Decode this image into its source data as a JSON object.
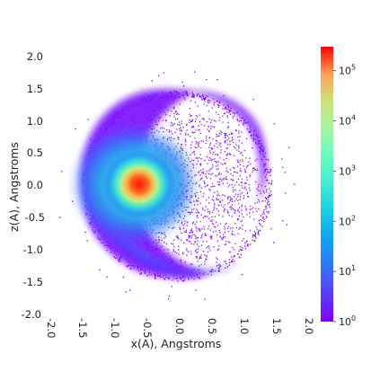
{
  "chart_data": {
    "type": "heatmap",
    "title": "",
    "xlabel": "x(A), Angstroms",
    "ylabel": "z(A), Angstroms",
    "xlim": [
      -2.0,
      2.0
    ],
    "ylim": [
      -2.0,
      2.0
    ],
    "x_ticks": [
      "-2.0",
      "-1.5",
      "-1.0",
      "-0.5",
      "0.0",
      "0.5",
      "1.0",
      "1.5",
      "2.0"
    ],
    "y_ticks": [
      "2.0",
      "1.5",
      "1.0",
      "0.5",
      "0.0",
      "-0.5",
      "-1.0",
      "-1.5",
      "-2.0"
    ],
    "grid": false,
    "colorbar": {
      "scale": "log",
      "range": [
        1,
        300000
      ],
      "colormap": "rainbow",
      "tick_labels": [
        {
          "base": "10",
          "exp": "0",
          "value": 1
        },
        {
          "base": "10",
          "exp": "1",
          "value": 10
        },
        {
          "base": "10",
          "exp": "2",
          "value": 100
        },
        {
          "base": "10",
          "exp": "3",
          "value": 1000
        },
        {
          "base": "10",
          "exp": "4",
          "value": 10000
        },
        {
          "base": "10",
          "exp": "5",
          "value": 100000
        }
      ]
    },
    "density_features": [
      {
        "name": "peak",
        "x": -0.5,
        "z": 0.0,
        "count": 300000
      },
      {
        "name": "core halo",
        "x": -0.55,
        "z": 0.05,
        "count": 3000
      },
      {
        "name": "disk",
        "x": 0.0,
        "z": 0.0,
        "radius": 1.45,
        "count": 3
      },
      {
        "name": "lower-left arc",
        "x": -0.9,
        "z": -0.9,
        "count": 30
      },
      {
        "name": "upper-right arc",
        "x": 0.85,
        "z": 1.15,
        "count": 10
      }
    ],
    "colors": {
      "low": "#8000ff",
      "mid": "#2adddd",
      "high": "#ff0000"
    }
  }
}
